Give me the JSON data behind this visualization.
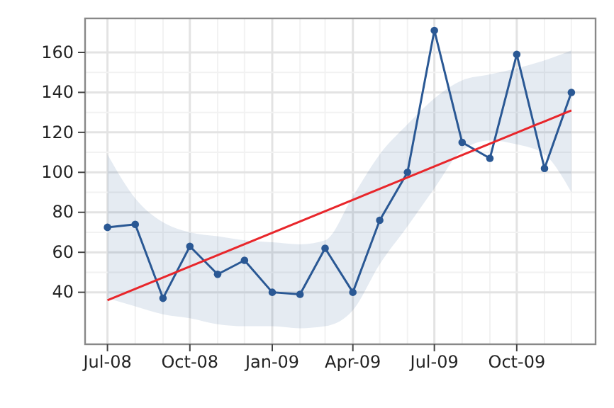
{
  "chart_data": {
    "type": "line",
    "x": [
      "2008-07-01",
      "2008-08-01",
      "2008-09-01",
      "2008-10-01",
      "2008-11-01",
      "2008-12-01",
      "2009-01-01",
      "2009-02-01",
      "2009-03-01",
      "2009-04-01",
      "2009-05-01",
      "2009-06-01",
      "2009-07-01",
      "2009-08-01",
      "2009-09-01",
      "2009-10-01",
      "2009-11-01",
      "2009-12-01"
    ],
    "series": [
      {
        "color": "#2a5894",
        "marker": "circle",
        "values": [
          72.5,
          74,
          37,
          63,
          49,
          56,
          40,
          39,
          62,
          40,
          76,
          100,
          171,
          115,
          107,
          159,
          102,
          140
        ],
        "lower": [
          37,
          33,
          29,
          27,
          24,
          23,
          23,
          22,
          23,
          31,
          54,
          73,
          92,
          111,
          116,
          114,
          109,
          90
        ],
        "upper": [
          109,
          87,
          75,
          70,
          68,
          66,
          65,
          64,
          66,
          88,
          109,
          124,
          137,
          146,
          149,
          152,
          156,
          161
        ]
      },
      {
        "type": "line",
        "color": "#e8262b",
        "marker": "none",
        "x": [
          "2008-07-01",
          "2009-12-01"
        ],
        "values": [
          36,
          131
        ]
      }
    ],
    "xlim": [
      "2008-06-06",
      "2009-12-28"
    ],
    "xticks": [
      {
        "value": "2008-07-01",
        "label": "Jul-08"
      },
      {
        "value": "2008-10-01",
        "label": "Oct-08"
      },
      {
        "value": "2009-01-01",
        "label": "Jan-09"
      },
      {
        "value": "2009-04-01",
        "label": "Apr-09"
      },
      {
        "value": "2009-07-01",
        "label": "Jul-09"
      },
      {
        "value": "2009-10-01",
        "label": "Oct-09"
      }
    ],
    "ylim": [
      14,
      177
    ],
    "yticks": [
      40,
      60,
      80,
      100,
      120,
      140,
      160
    ],
    "grid": true,
    "line_style": "solid"
  }
}
